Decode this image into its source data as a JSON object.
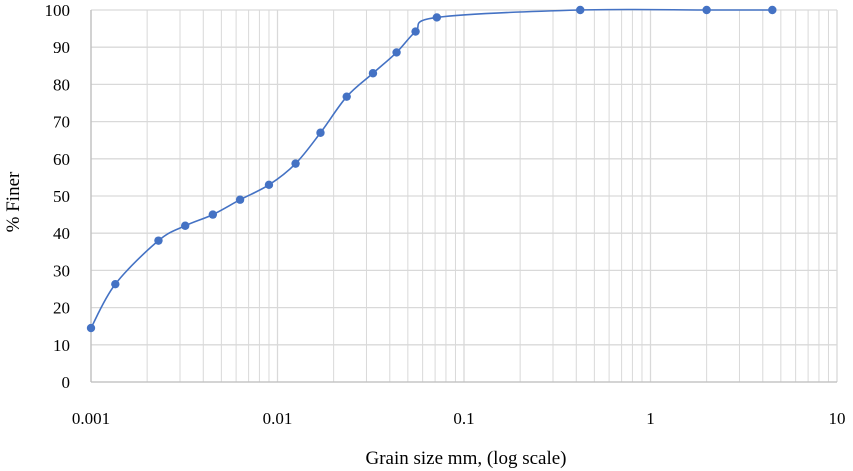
{
  "chart_data": {
    "type": "scatter",
    "title": "",
    "xlabel": "Grain size mm, (log scale)",
    "ylabel": "% Finer",
    "xscale": "log",
    "xlim": [
      0.001,
      10
    ],
    "ylim": [
      0,
      100
    ],
    "grid": true,
    "legend": "none",
    "line_style": "smooth",
    "series_color": "#4472C4",
    "grid_color": "#D9D9D9",
    "xticks": [
      {
        "value": 0.001,
        "label": "0.001"
      },
      {
        "value": 0.01,
        "label": "0.01"
      },
      {
        "value": 0.1,
        "label": "0.1"
      },
      {
        "value": 1,
        "label": "1"
      },
      {
        "value": 10,
        "label": "10"
      }
    ],
    "yticks": [
      {
        "value": 0,
        "label": "0"
      },
      {
        "value": 10,
        "label": "10"
      },
      {
        "value": 20,
        "label": "20"
      },
      {
        "value": 30,
        "label": "30"
      },
      {
        "value": 40,
        "label": "40"
      },
      {
        "value": 50,
        "label": "50"
      },
      {
        "value": 60,
        "label": "60"
      },
      {
        "value": 70,
        "label": "70"
      },
      {
        "value": 80,
        "label": "80"
      },
      {
        "value": 90,
        "label": "90"
      },
      {
        "value": 100,
        "label": "100"
      }
    ],
    "series": [
      {
        "x": [
          0.001,
          0.00135,
          0.0023,
          0.0032,
          0.0045,
          0.0063,
          0.009,
          0.0125,
          0.017,
          0.0235,
          0.0325,
          0.0435,
          0.055,
          0.0715,
          0.42,
          2.0,
          4.5
        ],
        "y": [
          14.5,
          26.3,
          38.0,
          42.0,
          45.0,
          49.0,
          53.0,
          58.7,
          67.0,
          76.7,
          83.0,
          88.6,
          94.2,
          98.0,
          100.0,
          100.0,
          100.0
        ]
      }
    ]
  }
}
